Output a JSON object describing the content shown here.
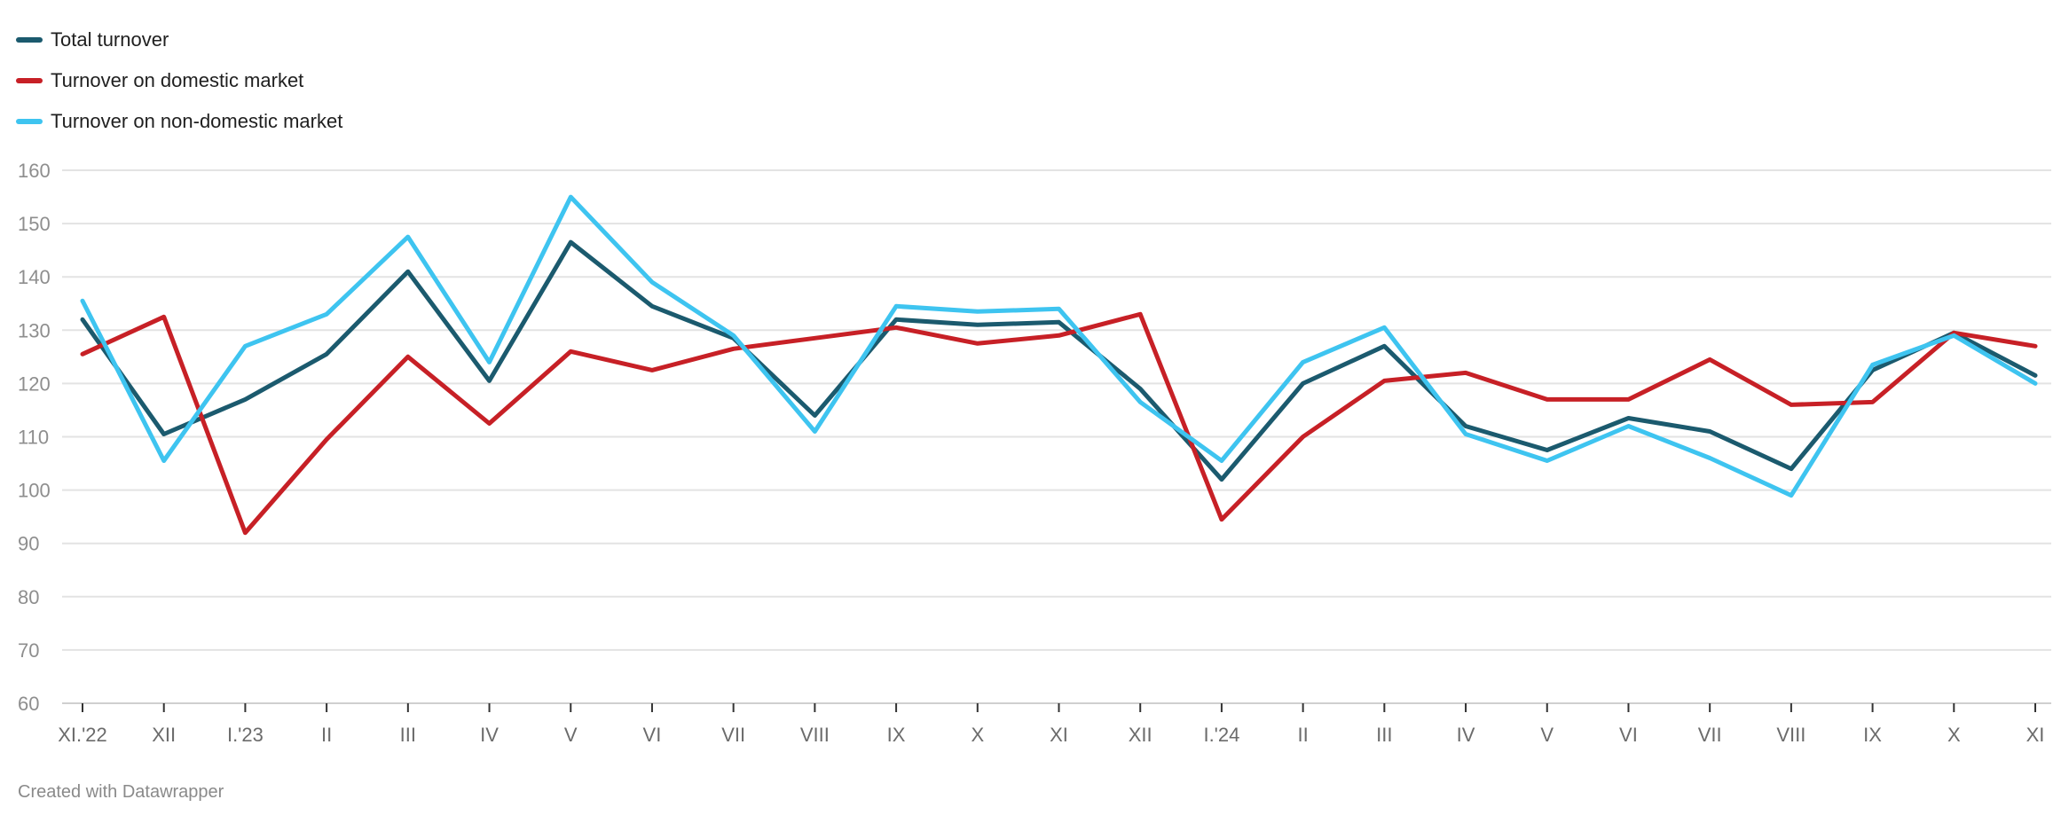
{
  "chart_data": {
    "type": "line",
    "categories": [
      "XI.'22",
      "XII",
      "I.'23",
      "II",
      "III",
      "IV",
      "V",
      "VI",
      "VII",
      "VIII",
      "IX",
      "X",
      "XI",
      "XII",
      "I.'24",
      "II",
      "III",
      "IV",
      "V",
      "VI",
      "VII",
      "VIII",
      "IX",
      "X",
      "XI"
    ],
    "series": [
      {
        "name": "Total turnover",
        "color": "#1b5a6e",
        "values": [
          132,
          110.5,
          117,
          125.5,
          141,
          120.5,
          146.5,
          134.5,
          128.5,
          114,
          132,
          131,
          131.5,
          119,
          102,
          120,
          127,
          112,
          107.5,
          113.5,
          111,
          104,
          122.5,
          129.5,
          121.5
        ]
      },
      {
        "name": "Turnover on domestic market",
        "color": "#c72026",
        "values": [
          125.5,
          132.5,
          92,
          109.5,
          125,
          112.5,
          126,
          122.5,
          126.5,
          128.5,
          130.5,
          127.5,
          129,
          133,
          94.5,
          110,
          120.5,
          122,
          117,
          117,
          124.5,
          116,
          116.5,
          129.5,
          127
        ]
      },
      {
        "name": "Turnover on non-domestic market",
        "color": "#3ec4f0",
        "values": [
          135.5,
          105.5,
          127,
          133,
          147.5,
          124,
          155,
          139,
          129,
          111,
          134.5,
          133.5,
          134,
          116.5,
          105.5,
          124,
          130.5,
          110.5,
          105.5,
          112,
          106,
          99,
          123.5,
          129,
          120
        ]
      }
    ],
    "ylim": [
      60,
      160
    ],
    "yticks": [
      60,
      70,
      80,
      90,
      100,
      110,
      120,
      130,
      140,
      150,
      160
    ],
    "grid": true,
    "legend_position": "top-left"
  },
  "footer": {
    "credit": "Created with Datawrapper"
  }
}
